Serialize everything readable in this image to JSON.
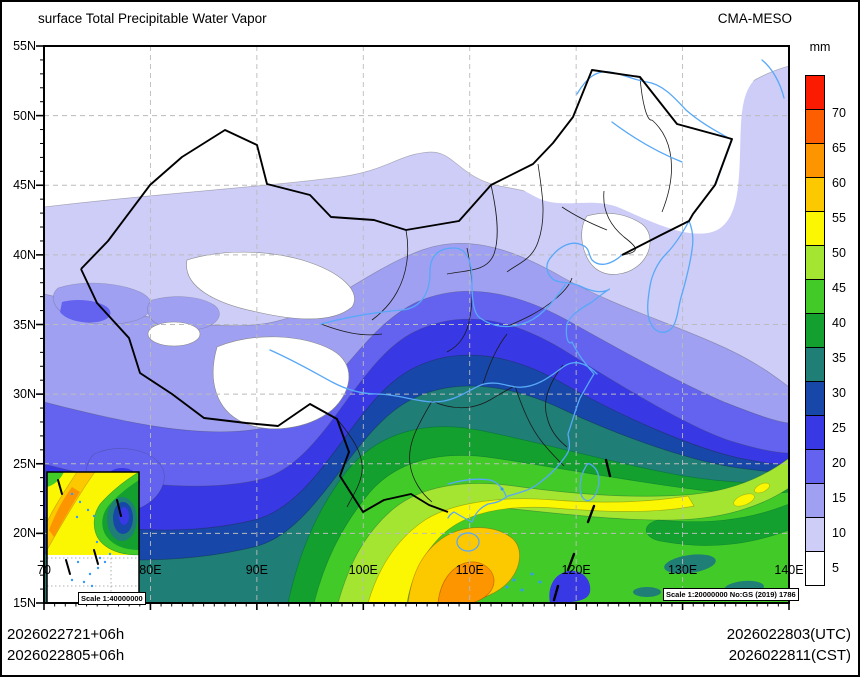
{
  "header": {
    "title": "surface Total Precipitable Water Vapor",
    "model": "CMA-MESO"
  },
  "colorbar": {
    "unit": "mm",
    "levels": [
      5,
      10,
      15,
      20,
      25,
      30,
      35,
      40,
      45,
      50,
      55,
      60,
      65,
      70
    ],
    "labels": [
      "5",
      "10",
      "15",
      "20",
      "25",
      "30",
      "35",
      "40",
      "45",
      "50",
      "55",
      "60",
      "65",
      "70"
    ],
    "colors": [
      "#ffffff",
      "#cdcdf8",
      "#a0a0f2",
      "#6363ef",
      "#3838e4",
      "#1647a9",
      "#1f7e76",
      "#13a02f",
      "#42cb28",
      "#a4e532",
      "#fbf702",
      "#fcc800",
      "#fd9500",
      "#fc5e00",
      "#fb1b00"
    ]
  },
  "axes": {
    "x_tick_labels": [
      "70",
      "80E",
      "90E",
      "100E",
      "110E",
      "120E",
      "130E",
      "140E"
    ],
    "y_tick_labels": [
      "55N",
      "50N",
      "45N",
      "40N",
      "35N",
      "30N",
      "25N",
      "20N",
      "15N"
    ],
    "lon_range": [
      70,
      140
    ],
    "lat_range": [
      15,
      55
    ]
  },
  "footer": {
    "left_lines": [
      "2026022721+06h",
      "2026022805+06h"
    ],
    "right_lines": [
      "2026022803(UTC)",
      "2026022811(CST)"
    ]
  },
  "scale_labels": {
    "main": "Scale 1:20000000 No:GS (2019) 1786",
    "inset": "Scale 1:40000000"
  },
  "style_colors": {
    "river": "#58a8f8",
    "grid": "#bbbbbb",
    "border": "#000000"
  }
}
